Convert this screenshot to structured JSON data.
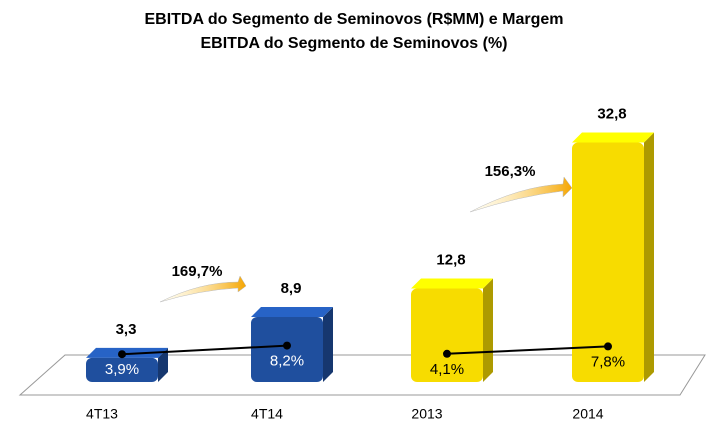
{
  "chart_data": {
    "type": "bar",
    "title": "EBITDA  do Segmento de Seminovos (R$MM) e Margem",
    "subtitle": "EBITDA  do Segmento de Seminovos (%)",
    "categories": [
      "4T13",
      "4T14",
      "2013",
      "2014"
    ],
    "values": [
      3.3,
      8.9,
      12.8,
      32.8
    ],
    "value_labels": [
      "3,3",
      "8,9",
      "12,8",
      "32,8"
    ],
    "colors": [
      "#1f4f9e",
      "#1f4f9e",
      "#f7dc00",
      "#f7dc00"
    ],
    "series": [
      {
        "name": "Margem",
        "color": "#000000",
        "axis": "y2",
        "values": [
          3.9,
          8.2,
          4.1,
          7.8
        ],
        "value_labels": [
          "3,9%",
          "8,2%",
          "4,1%",
          "7,8%"
        ]
      }
    ],
    "annotations": [
      "169,7%",
      "156,3%"
    ]
  }
}
